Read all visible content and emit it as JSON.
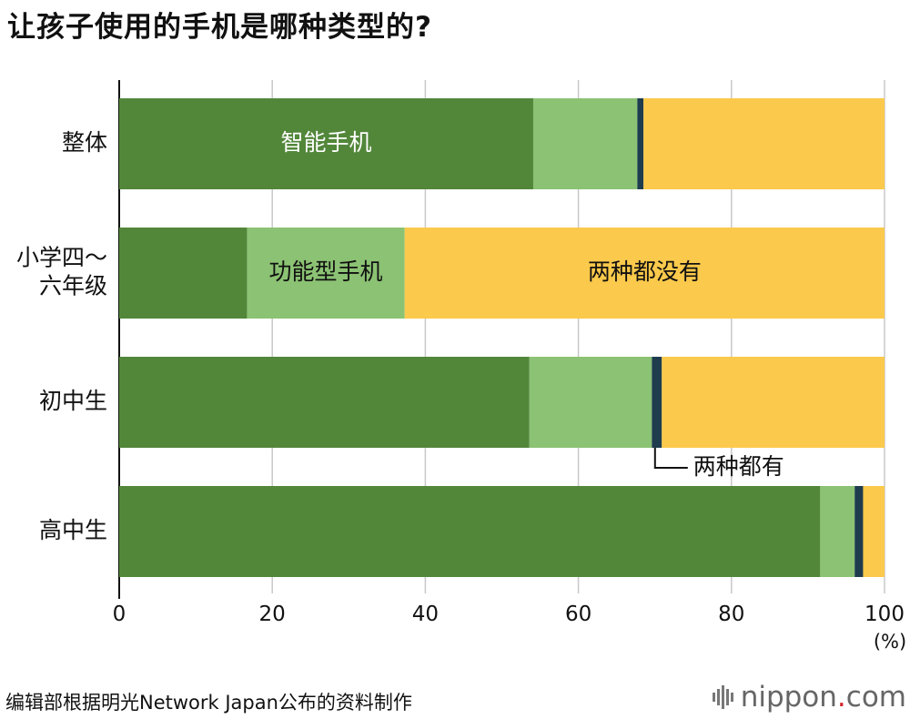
{
  "title": "让孩子使用的手机是哪种类型的?",
  "source": "编辑部根据明光Network Japan公布的资料制作",
  "logo": {
    "name": "nippon",
    "dot": ".",
    "tld": "com",
    "dot_color": "#d2282e"
  },
  "chart_data": {
    "type": "bar",
    "orientation": "horizontal",
    "stacked": true,
    "categories": [
      [
        "整体"
      ],
      [
        "小学四～",
        "六年级"
      ],
      [
        "初中生"
      ],
      [
        "高中生"
      ]
    ],
    "series": [
      {
        "name": "智能手机",
        "color": "#52873a",
        "values": [
          54.1,
          16.7,
          53.6,
          91.6
        ]
      },
      {
        "name": "功能型手机",
        "color": "#8bc273",
        "values": [
          13.6,
          20.6,
          16.0,
          4.5
        ]
      },
      {
        "name": "两种都有",
        "color": "#1f3c4e",
        "values": [
          0.8,
          0.0,
          1.3,
          1.1
        ]
      },
      {
        "name": "两种都没有",
        "color": "#fbc94b",
        "values": [
          31.5,
          62.7,
          29.1,
          2.8
        ]
      }
    ],
    "xlim": [
      0,
      100
    ],
    "xticks": [
      0,
      20,
      40,
      60,
      80,
      100
    ],
    "x_unit": "(%)",
    "grid": true,
    "legend": "inline",
    "inline_labels": [
      {
        "series": 0,
        "category": 0,
        "text": "智能手机",
        "color": "#ffffff"
      },
      {
        "series": 1,
        "category": 1,
        "text": "功能型手机",
        "color": "#111111"
      },
      {
        "series": 3,
        "category": 1,
        "text": "两种都没有",
        "color": "#111111"
      }
    ],
    "callout": {
      "series": 2,
      "category": 2,
      "text": "两种都有"
    }
  }
}
